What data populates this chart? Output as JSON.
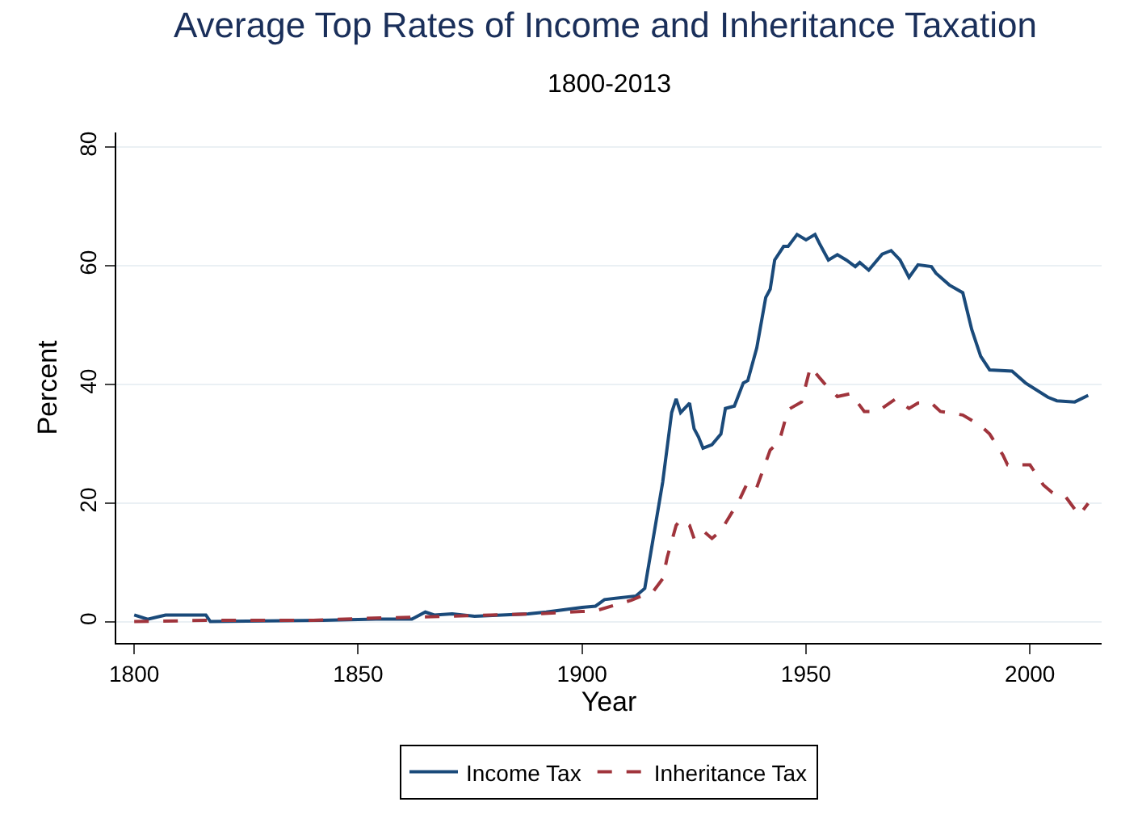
{
  "chart_data": {
    "type": "line",
    "title": "Average Top Rates of Income and Inheritance Taxation",
    "subtitle": "1800-2013",
    "xlabel": "Year",
    "ylabel": "Percent",
    "xlim": [
      1796,
      2016
    ],
    "xticks": [
      1800,
      1850,
      1900,
      1950,
      2000
    ],
    "ylim": [
      -3.5,
      82.5
    ],
    "yticks": [
      0,
      20,
      40,
      60,
      80
    ],
    "grid": "y",
    "legend": "bottom",
    "series": [
      {
        "name": "Income Tax",
        "color": "#1a4a7a",
        "line_style": "solid",
        "x": [
          1800,
          1803,
          1807,
          1816,
          1817,
          1842,
          1854,
          1862,
          1865,
          1867,
          1871,
          1876,
          1888,
          1892,
          1900,
          1903,
          1905,
          1912,
          1914,
          1918,
          1920,
          1921,
          1922,
          1924,
          1925,
          1926,
          1927,
          1929,
          1931,
          1932,
          1934,
          1936,
          1937,
          1939,
          1941,
          1942,
          1943,
          1945,
          1946,
          1948,
          1950,
          1952,
          1953,
          1955,
          1957,
          1959,
          1961,
          1962,
          1964,
          1967,
          1969,
          1971,
          1973,
          1975,
          1978,
          1979,
          1982,
          1985,
          1987,
          1989,
          1991,
          1996,
          1999,
          2004,
          2006,
          2010,
          2013
        ],
        "values": [
          1.2,
          0.5,
          1.2,
          1.2,
          0.1,
          0.3,
          0.5,
          0.5,
          1.7,
          1.2,
          1.4,
          1.0,
          1.4,
          1.7,
          2.5,
          2.7,
          3.8,
          4.4,
          5.7,
          23.6,
          35.3,
          37.6,
          35.3,
          36.9,
          32.6,
          31.2,
          29.3,
          29.9,
          31.7,
          36.0,
          36.4,
          40.3,
          40.7,
          46.2,
          54.7,
          56.1,
          61.0,
          63.3,
          63.3,
          65.3,
          64.4,
          65.3,
          63.8,
          61.0,
          61.9,
          61.0,
          59.9,
          60.6,
          59.3,
          62.0,
          62.6,
          61.0,
          58.1,
          60.2,
          59.9,
          58.8,
          56.8,
          55.5,
          49.3,
          44.8,
          42.5,
          42.3,
          40.3,
          37.9,
          37.3,
          37.1,
          38.2
        ]
      },
      {
        "name": "Inheritance Tax",
        "color": "#a0343c",
        "line_style": "dashed",
        "x": [
          1800,
          1816,
          1840,
          1850,
          1870,
          1890,
          1900,
          1903,
          1911,
          1916,
          1918,
          1919,
          1921,
          1922,
          1924,
          1925,
          1927,
          1929,
          1931,
          1935,
          1937,
          1939,
          1942,
          1944,
          1946,
          1949,
          1951,
          1954,
          1957,
          1960,
          1963,
          1966,
          1970,
          1973,
          1975,
          1978,
          1980,
          1985,
          1989,
          1991,
          1994,
          1995,
          2000,
          2003,
          2005,
          2008,
          2011,
          2013
        ],
        "values": [
          0.1,
          0.3,
          0.3,
          0.6,
          1.0,
          1.4,
          1.8,
          1.9,
          3.7,
          5.3,
          7.3,
          10.9,
          16.3,
          17.3,
          16.3,
          14.1,
          15.4,
          14.1,
          15.4,
          20.4,
          23.6,
          22.7,
          29.0,
          30.4,
          35.8,
          37.1,
          43.0,
          40.3,
          38.0,
          38.5,
          35.5,
          35.5,
          37.6,
          36.0,
          36.9,
          36.9,
          35.5,
          34.9,
          33.1,
          31.7,
          28.1,
          26.5,
          26.5,
          23.1,
          21.8,
          21.1,
          18.0,
          20.0
        ]
      }
    ]
  }
}
